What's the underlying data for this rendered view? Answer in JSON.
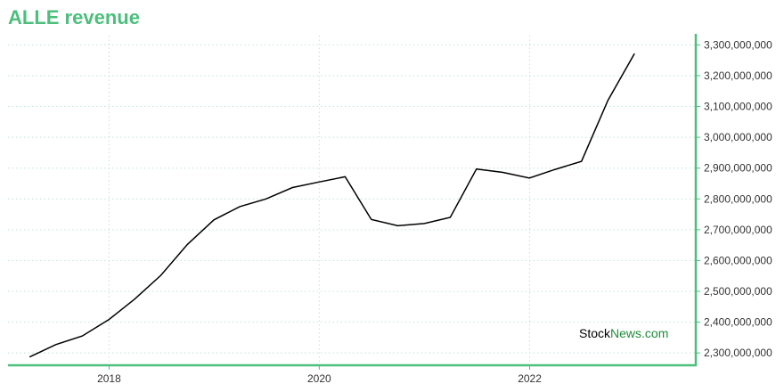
{
  "title": "ALLE revenue",
  "watermark": {
    "part1": "Stock",
    "part2": "News.com"
  },
  "colors": {
    "accent": "#4cbf7c",
    "line": "#000000",
    "grid": "#bfe6d0",
    "watermark_news": "#1f8b3a"
  },
  "chart_data": {
    "type": "line",
    "title": "ALLE revenue",
    "xlabel": "",
    "ylabel": "",
    "x_ticks": [
      "2018",
      "2020",
      "2022"
    ],
    "y_ticks": [
      "2,300,000,000",
      "2,400,000,000",
      "2,500,000,000",
      "2,600,000,000",
      "2,700,000,000",
      "2,800,000,000",
      "2,900,000,000",
      "3,000,000,000",
      "3,100,000,000",
      "3,200,000,000",
      "3,300,000,000"
    ],
    "ylim": [
      2260000000,
      3330000000
    ],
    "xlim": [
      "2017-01-15",
      "2023-08-01"
    ],
    "grid": true,
    "y_axis_position": "right",
    "series": [
      {
        "x": [
          "2017-03-31",
          "2017-06-30",
          "2017-09-30",
          "2017-12-31",
          "2018-03-31",
          "2018-06-30",
          "2018-09-30",
          "2018-12-31",
          "2019-03-31",
          "2019-06-30",
          "2019-09-30",
          "2019-12-31",
          "2020-03-31",
          "2020-06-30",
          "2020-09-30",
          "2020-12-31",
          "2021-03-31",
          "2021-06-30",
          "2021-09-30",
          "2021-12-31",
          "2022-03-31",
          "2022-06-30",
          "2022-09-30",
          "2022-12-31"
        ],
        "values": [
          2287000000,
          2327000000,
          2355000000,
          2408000000,
          2475000000,
          2552000000,
          2652000000,
          2732000000,
          2775000000,
          2800000000,
          2837000000,
          2855000000,
          2872000000,
          2733000000,
          2713000000,
          2720000000,
          2740000000,
          2897000000,
          2886000000,
          2868000000,
          2896000000,
          2922000000,
          3120000000,
          3272000000
        ]
      }
    ]
  }
}
